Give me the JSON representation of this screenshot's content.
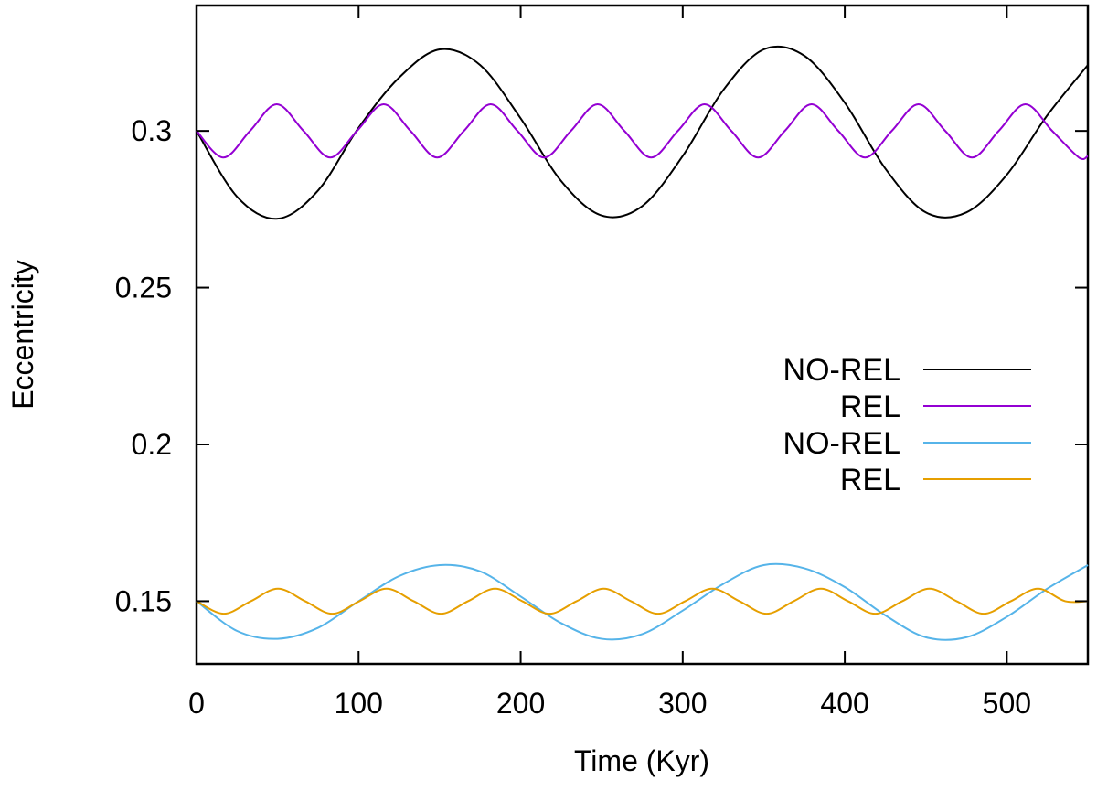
{
  "chart_data": {
    "type": "line",
    "title": "",
    "xlabel": "Time (Kyr)",
    "ylabel": "Eccentricity",
    "xlim": [
      0,
      550
    ],
    "ylim": [
      0.13,
      0.34
    ],
    "xticks": [
      0,
      100,
      200,
      300,
      400,
      500
    ],
    "xtick_labels": [
      "0",
      "100",
      "200",
      "300",
      "400",
      "500"
    ],
    "yticks": [
      0.15,
      0.2,
      0.25,
      0.3
    ],
    "ytick_labels": [
      "0.15",
      "0.2",
      "0.25",
      "0.3"
    ],
    "grid": false,
    "legend_position": "center-right",
    "series": [
      {
        "name": "NO-REL",
        "color": "#000000",
        "x": [
          0,
          25,
          50,
          75,
          100,
          125,
          150,
          175,
          200,
          225,
          250,
          275,
          300,
          325,
          350,
          375,
          400,
          425,
          450,
          475,
          500,
          525,
          550
        ],
        "y": [
          0.3,
          0.279,
          0.272,
          0.281,
          0.301,
          0.317,
          0.326,
          0.321,
          0.304,
          0.284,
          0.273,
          0.276,
          0.292,
          0.313,
          0.326,
          0.324,
          0.309,
          0.288,
          0.274,
          0.274,
          0.286,
          0.305,
          0.321
        ]
      },
      {
        "name": "REL",
        "color": "#9400d3",
        "x": [
          0,
          16.5,
          33,
          49.5,
          66,
          82.5,
          99,
          115.5,
          132,
          148.5,
          165,
          181.5,
          198,
          214.5,
          231,
          247.5,
          264,
          280.5,
          297,
          313.5,
          330,
          346.5,
          363,
          379.5,
          396,
          412.5,
          429,
          445.5,
          462,
          478.5,
          495,
          511.5,
          528,
          544.5,
          550
        ],
        "y": [
          0.3,
          0.2915,
          0.3,
          0.3085,
          0.3,
          0.2915,
          0.3,
          0.3085,
          0.3,
          0.2915,
          0.3,
          0.3085,
          0.3,
          0.2915,
          0.3,
          0.3085,
          0.3,
          0.2915,
          0.3,
          0.3085,
          0.3,
          0.2915,
          0.3,
          0.3085,
          0.3,
          0.2915,
          0.3,
          0.3085,
          0.3,
          0.2915,
          0.3,
          0.3085,
          0.3,
          0.2915,
          0.292
        ]
      },
      {
        "name": "NO-REL",
        "color": "#56b4e9",
        "x": [
          0,
          25,
          50,
          75,
          100,
          125,
          150,
          175,
          200,
          225,
          250,
          275,
          300,
          325,
          350,
          375,
          400,
          425,
          450,
          475,
          500,
          525,
          550
        ],
        "y": [
          0.15,
          0.1405,
          0.138,
          0.1415,
          0.15,
          0.158,
          0.1615,
          0.1595,
          0.1515,
          0.143,
          0.138,
          0.1395,
          0.147,
          0.1555,
          0.1615,
          0.1605,
          0.1545,
          0.1455,
          0.1385,
          0.1385,
          0.145,
          0.154,
          0.1615
        ]
      },
      {
        "name": "REL",
        "color": "#e69f00",
        "x": [
          0,
          16.75,
          33.5,
          50.25,
          67,
          83.75,
          100.5,
          117.25,
          134,
          150.75,
          167.5,
          184.25,
          201,
          217.75,
          234.5,
          251.25,
          268,
          284.75,
          301.5,
          318.25,
          335,
          351.75,
          368.5,
          385.25,
          402,
          418.75,
          435.5,
          452.25,
          469,
          485.75,
          502.5,
          519.25,
          536,
          550
        ],
        "y": [
          0.15,
          0.146,
          0.15,
          0.154,
          0.15,
          0.146,
          0.15,
          0.154,
          0.15,
          0.146,
          0.15,
          0.154,
          0.15,
          0.146,
          0.15,
          0.154,
          0.15,
          0.146,
          0.15,
          0.154,
          0.15,
          0.146,
          0.15,
          0.154,
          0.15,
          0.146,
          0.15,
          0.154,
          0.15,
          0.146,
          0.15,
          0.154,
          0.15,
          0.15
        ]
      }
    ]
  }
}
